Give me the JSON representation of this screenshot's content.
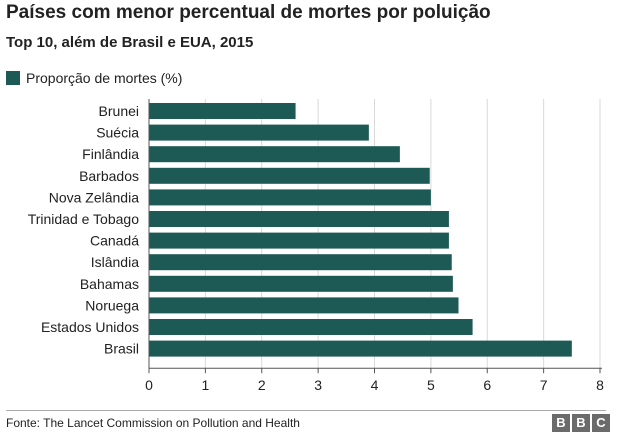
{
  "colors": {
    "bar": "#1d5a55",
    "grid": "#d9d9d9",
    "axis": "#555555",
    "text": "#222222"
  },
  "chart_data": {
    "type": "bar",
    "orientation": "horizontal",
    "title": "Países com menor percentual de mortes por poluição",
    "subtitle": "Top 10, além de Brasil e EUA, 2015",
    "legend": "Proporção de mortes (%)",
    "categories": [
      "Brunei",
      "Suécia",
      "Finlândia",
      "Barbados",
      "Nova Zelândia",
      "Trinidad e Tobago",
      "Canadá",
      "Islândia",
      "Bahamas",
      "Noruega",
      "Estados Unidos",
      "Brasil"
    ],
    "series": [
      {
        "name": "Proporção de mortes (%)",
        "values": [
          2.6,
          3.9,
          4.45,
          4.98,
          5.0,
          5.32,
          5.32,
          5.37,
          5.39,
          5.49,
          5.74,
          7.5
        ]
      }
    ],
    "xlim": [
      0,
      8
    ],
    "xticks": [
      0,
      1,
      2,
      3,
      4,
      5,
      6,
      7,
      8
    ],
    "grid": "vertical"
  },
  "footer": {
    "source": "Fonte: The Lancet Commission on Pollution and Health",
    "logo_letters": [
      "B",
      "B",
      "C"
    ]
  }
}
